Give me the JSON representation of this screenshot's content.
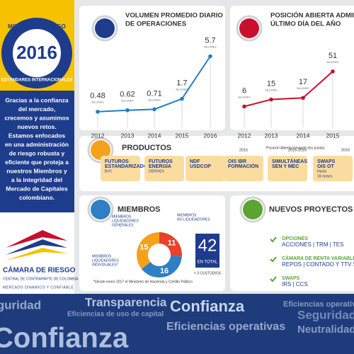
{
  "left": {
    "badge_top": "MODELO DE RIESGO",
    "year": "2016",
    "badge_bottom": "ESTÁNDARES INTERNACIONALES",
    "message": [
      "Gracias a la confianza",
      "del mercado,",
      "crecemos y asumimos",
      "nuevos retos.",
      "Estamos enfocados",
      "en una administración",
      "de riesgo robusta y",
      "eficiente que proteja a",
      "nuestros Miembros y",
      "a la integridad del",
      "Mercado de Capitales",
      "colombiano."
    ],
    "logo_name": "CÁMARA DE RIESGO",
    "logo_sub": "CENTRAL DE CONTRAPARTE DE COLOMBIA",
    "tagline": "MERCADO DINÁMICO Y CONFIABLE"
  },
  "volume": {
    "type": "line",
    "title": [
      "VOLUMEN PROMEDIO DIARIO",
      "DE OPERACIONES"
    ],
    "unit": "BILLONES",
    "categories": [
      "2012",
      "2013",
      "2014",
      "2015",
      "2016"
    ],
    "values": [
      0.48,
      0.62,
      0.71,
      1.7,
      5.7
    ],
    "color": "#1f7fc4"
  },
  "open_interest": {
    "type": "line",
    "title": [
      "POSICIÓN ABIERTA ADMINISTRADA",
      "ÚLTIMO DÍA DEL AÑO"
    ],
    "unit": "BILLONES",
    "categories": [
      "2012",
      "2013",
      "2014",
      "2015"
    ],
    "values": [
      6,
      15,
      17,
      51
    ],
    "color": "#c8102e",
    "note": "Posición Abierta tomando dos puntas"
  },
  "products": {
    "title": "PRODUCTOS",
    "periods": [
      "2015",
      "2015-2016",
      "2016"
    ],
    "items": [
      [
        "FUTUROS",
        "ESTANDARIZADOS",
        "BVC"
      ],
      [
        "FUTUROS",
        "ENERGÍA",
        "DERIVEX"
      ],
      [
        "NDF",
        "USDCOP"
      ],
      [
        "OIS IBR",
        "FORMACIÓN"
      ],
      [
        "SIMULTÁNEAS",
        "SEN Y MEC"
      ],
      [
        "SWAPS",
        "OIS OT",
        "Hasta",
        "18 meses"
      ]
    ]
  },
  "members": {
    "title": "MIEMBROS",
    "categories": [
      [
        "MIEMBROS",
        "LIQUIDADORES",
        "GENERALES"
      ],
      [
        "MIEMBROS",
        "NO LIQUIDADORES"
      ],
      [
        "MIEMBROS",
        "LIQUIDADORES",
        "INDIVIDUALES*"
      ]
    ],
    "values": [
      11,
      16,
      15
    ],
    "colors": [
      "#e8412c",
      "#2f7fc6",
      "#f4a21c"
    ],
    "total": 42,
    "total_label": "EN TOTAL",
    "custodians": "+ 3 CUSTODIOS",
    "footnote": "*Desde enero 2017 el Ministerio de Hacienda y Crédito Público"
  },
  "projects": {
    "title": "NUEVOS PROYECTOS",
    "items": [
      {
        "name": "OPCIONES",
        "detail": "ACCIONES | TRM | TES"
      },
      {
        "name": "CÁMARA DE RENTA VARIABLE",
        "detail": "REPOS | CONTADO Y TTV S"
      },
      {
        "name": "SWAPS",
        "detail": "IRS | CCS"
      }
    ]
  },
  "cloud": [
    "Seguridad",
    "Transparencia",
    "Eficiencias de uso de capital",
    "Confianza",
    "Eficiencias operativas",
    "Seguridad",
    "Confianza",
    "Eficiencias operativas",
    "Neutralidad"
  ]
}
